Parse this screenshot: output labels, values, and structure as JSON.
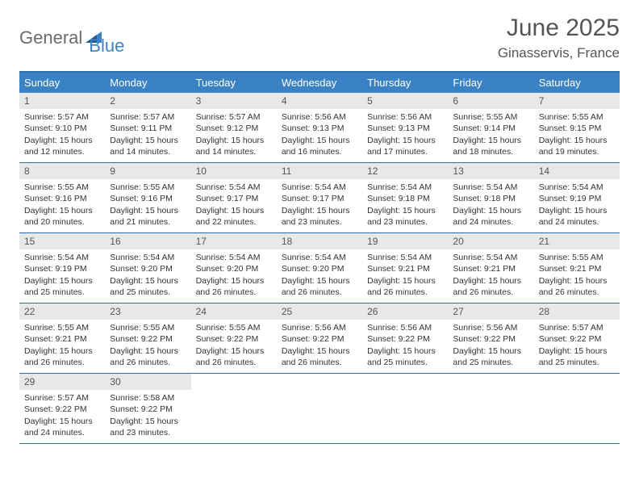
{
  "logo": {
    "part1": "General",
    "part2": "Blue"
  },
  "title": "June 2025",
  "location": "Ginasservis, France",
  "colors": {
    "header_bg": "#3b82c4",
    "header_text": "#ffffff",
    "border": "#2a6fa8",
    "daynum_bg": "#e8e8e8",
    "text": "#333333",
    "logo_gray": "#6b6b6b",
    "logo_blue": "#3b82c4"
  },
  "weekdays": [
    "Sunday",
    "Monday",
    "Tuesday",
    "Wednesday",
    "Thursday",
    "Friday",
    "Saturday"
  ],
  "weeks": [
    [
      {
        "n": "1",
        "sr": "Sunrise: 5:57 AM",
        "ss": "Sunset: 9:10 PM",
        "d1": "Daylight: 15 hours",
        "d2": "and 12 minutes."
      },
      {
        "n": "2",
        "sr": "Sunrise: 5:57 AM",
        "ss": "Sunset: 9:11 PM",
        "d1": "Daylight: 15 hours",
        "d2": "and 14 minutes."
      },
      {
        "n": "3",
        "sr": "Sunrise: 5:57 AM",
        "ss": "Sunset: 9:12 PM",
        "d1": "Daylight: 15 hours",
        "d2": "and 14 minutes."
      },
      {
        "n": "4",
        "sr": "Sunrise: 5:56 AM",
        "ss": "Sunset: 9:13 PM",
        "d1": "Daylight: 15 hours",
        "d2": "and 16 minutes."
      },
      {
        "n": "5",
        "sr": "Sunrise: 5:56 AM",
        "ss": "Sunset: 9:13 PM",
        "d1": "Daylight: 15 hours",
        "d2": "and 17 minutes."
      },
      {
        "n": "6",
        "sr": "Sunrise: 5:55 AM",
        "ss": "Sunset: 9:14 PM",
        "d1": "Daylight: 15 hours",
        "d2": "and 18 minutes."
      },
      {
        "n": "7",
        "sr": "Sunrise: 5:55 AM",
        "ss": "Sunset: 9:15 PM",
        "d1": "Daylight: 15 hours",
        "d2": "and 19 minutes."
      }
    ],
    [
      {
        "n": "8",
        "sr": "Sunrise: 5:55 AM",
        "ss": "Sunset: 9:16 PM",
        "d1": "Daylight: 15 hours",
        "d2": "and 20 minutes."
      },
      {
        "n": "9",
        "sr": "Sunrise: 5:55 AM",
        "ss": "Sunset: 9:16 PM",
        "d1": "Daylight: 15 hours",
        "d2": "and 21 minutes."
      },
      {
        "n": "10",
        "sr": "Sunrise: 5:54 AM",
        "ss": "Sunset: 9:17 PM",
        "d1": "Daylight: 15 hours",
        "d2": "and 22 minutes."
      },
      {
        "n": "11",
        "sr": "Sunrise: 5:54 AM",
        "ss": "Sunset: 9:17 PM",
        "d1": "Daylight: 15 hours",
        "d2": "and 23 minutes."
      },
      {
        "n": "12",
        "sr": "Sunrise: 5:54 AM",
        "ss": "Sunset: 9:18 PM",
        "d1": "Daylight: 15 hours",
        "d2": "and 23 minutes."
      },
      {
        "n": "13",
        "sr": "Sunrise: 5:54 AM",
        "ss": "Sunset: 9:18 PM",
        "d1": "Daylight: 15 hours",
        "d2": "and 24 minutes."
      },
      {
        "n": "14",
        "sr": "Sunrise: 5:54 AM",
        "ss": "Sunset: 9:19 PM",
        "d1": "Daylight: 15 hours",
        "d2": "and 24 minutes."
      }
    ],
    [
      {
        "n": "15",
        "sr": "Sunrise: 5:54 AM",
        "ss": "Sunset: 9:19 PM",
        "d1": "Daylight: 15 hours",
        "d2": "and 25 minutes."
      },
      {
        "n": "16",
        "sr": "Sunrise: 5:54 AM",
        "ss": "Sunset: 9:20 PM",
        "d1": "Daylight: 15 hours",
        "d2": "and 25 minutes."
      },
      {
        "n": "17",
        "sr": "Sunrise: 5:54 AM",
        "ss": "Sunset: 9:20 PM",
        "d1": "Daylight: 15 hours",
        "d2": "and 26 minutes."
      },
      {
        "n": "18",
        "sr": "Sunrise: 5:54 AM",
        "ss": "Sunset: 9:20 PM",
        "d1": "Daylight: 15 hours",
        "d2": "and 26 minutes."
      },
      {
        "n": "19",
        "sr": "Sunrise: 5:54 AM",
        "ss": "Sunset: 9:21 PM",
        "d1": "Daylight: 15 hours",
        "d2": "and 26 minutes."
      },
      {
        "n": "20",
        "sr": "Sunrise: 5:54 AM",
        "ss": "Sunset: 9:21 PM",
        "d1": "Daylight: 15 hours",
        "d2": "and 26 minutes."
      },
      {
        "n": "21",
        "sr": "Sunrise: 5:55 AM",
        "ss": "Sunset: 9:21 PM",
        "d1": "Daylight: 15 hours",
        "d2": "and 26 minutes."
      }
    ],
    [
      {
        "n": "22",
        "sr": "Sunrise: 5:55 AM",
        "ss": "Sunset: 9:21 PM",
        "d1": "Daylight: 15 hours",
        "d2": "and 26 minutes."
      },
      {
        "n": "23",
        "sr": "Sunrise: 5:55 AM",
        "ss": "Sunset: 9:22 PM",
        "d1": "Daylight: 15 hours",
        "d2": "and 26 minutes."
      },
      {
        "n": "24",
        "sr": "Sunrise: 5:55 AM",
        "ss": "Sunset: 9:22 PM",
        "d1": "Daylight: 15 hours",
        "d2": "and 26 minutes."
      },
      {
        "n": "25",
        "sr": "Sunrise: 5:56 AM",
        "ss": "Sunset: 9:22 PM",
        "d1": "Daylight: 15 hours",
        "d2": "and 26 minutes."
      },
      {
        "n": "26",
        "sr": "Sunrise: 5:56 AM",
        "ss": "Sunset: 9:22 PM",
        "d1": "Daylight: 15 hours",
        "d2": "and 25 minutes."
      },
      {
        "n": "27",
        "sr": "Sunrise: 5:56 AM",
        "ss": "Sunset: 9:22 PM",
        "d1": "Daylight: 15 hours",
        "d2": "and 25 minutes."
      },
      {
        "n": "28",
        "sr": "Sunrise: 5:57 AM",
        "ss": "Sunset: 9:22 PM",
        "d1": "Daylight: 15 hours",
        "d2": "and 25 minutes."
      }
    ],
    [
      {
        "n": "29",
        "sr": "Sunrise: 5:57 AM",
        "ss": "Sunset: 9:22 PM",
        "d1": "Daylight: 15 hours",
        "d2": "and 24 minutes."
      },
      {
        "n": "30",
        "sr": "Sunrise: 5:58 AM",
        "ss": "Sunset: 9:22 PM",
        "d1": "Daylight: 15 hours",
        "d2": "and 23 minutes."
      },
      null,
      null,
      null,
      null,
      null
    ]
  ]
}
